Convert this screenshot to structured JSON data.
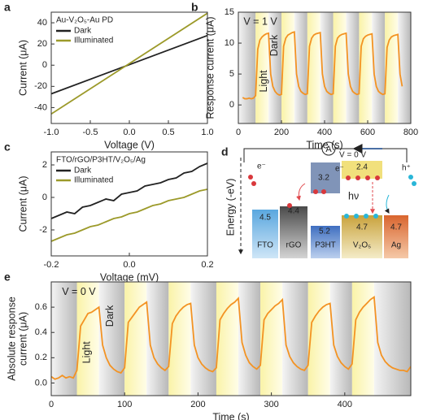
{
  "chart_data": [
    {
      "type": "line",
      "panel_label": "a",
      "xlabel": "Voltage (V)",
      "ylabel": "Current (μA)",
      "legend_title": "Au-V₂O₅-Au PD",
      "legend": "upper left",
      "x": [
        -1,
        1
      ],
      "series": [
        {
          "name": "Dark",
          "color": "#222222",
          "values": [
            -27,
            28
          ]
        },
        {
          "name": "Illuminated",
          "color": "#9c9a2a",
          "values": [
            -46,
            49
          ]
        }
      ],
      "xlim": [
        -1,
        1
      ],
      "ylim": [
        -55,
        50
      ],
      "xticks": [
        {
          "value": -1,
          "label": "-1.0"
        },
        -0.5,
        {
          "value": 0,
          "label": "0.0"
        },
        0.5,
        {
          "value": 1,
          "label": "1.0"
        }
      ],
      "yticks": [
        -40,
        -20,
        0,
        20,
        40
      ]
    },
    {
      "type": "line",
      "panel_label": "b",
      "xlabel": "Time (s)",
      "ylabel": "Response current (μA)",
      "annotations": [
        "V = 1 V",
        "Light",
        "Dark"
      ],
      "bands": [
        [
          80,
          140
        ],
        [
          200,
          260
        ],
        [
          320,
          380
        ],
        [
          440,
          500
        ],
        [
          560,
          620
        ],
        [
          680,
          740
        ]
      ],
      "x": [
        20,
        30,
        40,
        50,
        60,
        70,
        80,
        90,
        100,
        110,
        120,
        130,
        140,
        150,
        160,
        170,
        180,
        190,
        200,
        210,
        220,
        230,
        240,
        250,
        260,
        270,
        280,
        290,
        300,
        310,
        320,
        330,
        340,
        350,
        360,
        370,
        380,
        390,
        400,
        410,
        420,
        430,
        440,
        450,
        460,
        470,
        480,
        490,
        500,
        510,
        520,
        530,
        540,
        550,
        560,
        570,
        580,
        590,
        600,
        610,
        620,
        630,
        640,
        650,
        660,
        670,
        680,
        690,
        700,
        710,
        720,
        730,
        740,
        750,
        760
      ],
      "series": [
        {
          "name": "Response current",
          "color": "#f39323",
          "values": [
            1.2,
            1.0,
            1.0,
            1.1,
            1.0,
            1.1,
            1.5,
            9,
            10.5,
            11,
            11.3,
            11.5,
            11.6,
            5,
            3,
            2.2,
            1.8,
            1.6,
            1.7,
            9.5,
            10.8,
            11.3,
            11.5,
            11.7,
            11.8,
            5,
            3,
            2.2,
            1.9,
            1.7,
            1.8,
            9.5,
            10.8,
            11.3,
            11.5,
            11.6,
            11.7,
            5,
            3,
            2.2,
            1.9,
            1.7,
            1.8,
            9.5,
            10.8,
            11.2,
            11.4,
            11.5,
            11.6,
            5,
            3,
            2.2,
            1.9,
            1.7,
            1.8,
            9.5,
            10.7,
            11.1,
            11.3,
            11.4,
            11.5,
            5,
            3,
            2.2,
            1.9,
            1.7,
            1.8,
            9.3,
            10.5,
            11,
            11.2,
            11.3,
            11.4,
            5,
            3
          ]
        }
      ],
      "xlim": [
        0,
        800
      ],
      "ylim": [
        -3,
        15
      ],
      "xticks": [
        0,
        200,
        400,
        600,
        800
      ],
      "yticks": [
        0,
        5,
        10,
        15
      ]
    },
    {
      "type": "line",
      "panel_label": "c",
      "xlabel": "Voltage (mV)",
      "ylabel": "Current (μA)",
      "legend_title": "FTO/rGO/P3HT/V₂O₅/Ag",
      "legend": "upper left",
      "x": [
        -0.2,
        -0.18,
        -0.16,
        -0.14,
        -0.12,
        -0.1,
        -0.08,
        -0.06,
        -0.04,
        -0.02,
        0,
        0.02,
        0.04,
        0.06,
        0.08,
        0.1,
        0.12,
        0.14,
        0.16,
        0.18,
        0.2
      ],
      "series": [
        {
          "name": "Dark",
          "color": "#222222",
          "values": [
            -1.3,
            -1.1,
            -0.9,
            -1.0,
            -0.6,
            -0.5,
            -0.3,
            -0.1,
            -0.2,
            0.2,
            0.3,
            0.4,
            0.7,
            0.8,
            0.9,
            1.1,
            1.2,
            1.5,
            1.6,
            1.9,
            2.1
          ]
        },
        {
          "name": "Illuminated",
          "color": "#9c9a2a",
          "values": [
            -2.7,
            -2.5,
            -2.3,
            -2.2,
            -2.0,
            -1.8,
            -1.7,
            -1.5,
            -1.3,
            -1.2,
            -1.0,
            -0.9,
            -0.7,
            -0.5,
            -0.4,
            -0.2,
            -0.1,
            0.0,
            0.2,
            0.4,
            0.5
          ]
        }
      ],
      "xlim": [
        -0.2,
        0.2
      ],
      "ylim": [
        -3.6,
        2.8
      ],
      "xticks": [
        -0.2,
        {
          "value": 0,
          "label": "0.0"
        },
        0.2
      ],
      "yticks": [
        -2,
        0,
        2
      ]
    },
    {
      "type": "line",
      "panel_label": "e",
      "xlabel": "Time (s)",
      "ylabel": [
        "Absolute response",
        "current (μA)"
      ],
      "annotations": [
        "V = 0 V",
        "Light",
        "Dark"
      ],
      "bands": [
        [
          35,
          65
        ],
        [
          100,
          130
        ],
        [
          160,
          190
        ],
        [
          225,
          255
        ],
        [
          285,
          315
        ],
        [
          350,
          380
        ],
        [
          410,
          440
        ]
      ],
      "x": [
        0,
        5,
        10,
        15,
        20,
        25,
        30,
        35,
        40,
        45,
        50,
        55,
        60,
        65,
        70,
        75,
        80,
        85,
        90,
        95,
        100,
        105,
        110,
        115,
        120,
        125,
        130,
        135,
        140,
        145,
        150,
        155,
        160,
        165,
        170,
        175,
        180,
        185,
        190,
        195,
        200,
        205,
        210,
        215,
        220,
        225,
        230,
        235,
        240,
        245,
        250,
        255,
        260,
        265,
        270,
        275,
        280,
        285,
        290,
        295,
        300,
        305,
        310,
        315,
        320,
        325,
        330,
        335,
        340,
        345,
        350,
        355,
        360,
        365,
        370,
        375,
        380,
        385,
        390,
        395,
        400,
        405,
        410,
        415,
        420,
        425,
        430,
        435,
        440,
        445,
        450,
        455,
        460,
        465,
        470,
        475,
        480,
        485,
        490
      ],
      "series": [
        {
          "name": "Absolute response current",
          "color": "#f39323",
          "values": [
            0.05,
            0.03,
            0.04,
            0.06,
            0.04,
            0.05,
            0.04,
            0.1,
            0.45,
            0.5,
            0.55,
            0.56,
            0.58,
            0.6,
            0.3,
            0.2,
            0.14,
            0.11,
            0.09,
            0.08,
            0.12,
            0.48,
            0.52,
            0.56,
            0.6,
            0.62,
            0.64,
            0.3,
            0.2,
            0.15,
            0.12,
            0.1,
            0.13,
            0.47,
            0.53,
            0.57,
            0.6,
            0.62,
            0.63,
            0.3,
            0.2,
            0.15,
            0.12,
            0.1,
            0.09,
            0.12,
            0.5,
            0.55,
            0.59,
            0.62,
            0.64,
            0.67,
            0.32,
            0.22,
            0.16,
            0.13,
            0.11,
            0.14,
            0.5,
            0.55,
            0.58,
            0.61,
            0.63,
            0.66,
            0.3,
            0.21,
            0.16,
            0.13,
            0.11,
            0.1,
            0.14,
            0.48,
            0.53,
            0.57,
            0.6,
            0.62,
            0.63,
            0.3,
            0.21,
            0.16,
            0.13,
            0.11,
            0.15,
            0.5,
            0.56,
            0.6,
            0.63,
            0.66,
            0.68,
            0.32,
            0.22,
            0.17,
            0.14,
            0.12,
            0.11,
            0.1,
            0.1,
            0.09,
            0.13
          ]
        }
      ],
      "xlim": [
        0,
        490
      ],
      "ylim": [
        -0.1,
        0.8
      ],
      "xticks": [
        0,
        100,
        200,
        300,
        400
      ],
      "yticks": [
        {
          "value": 0,
          "label": "0.0"
        },
        0.2,
        0.4,
        0.6
      ]
    }
  ],
  "diagram": {
    "panel_label": "d",
    "axis_label": "Energy (-eV)",
    "bias": "V = 0 V",
    "meter": "A",
    "electron_left": "e⁻",
    "electron_top": "e⁻",
    "hole": "h⁺",
    "photon": "hν",
    "layers": [
      {
        "name": "FTO",
        "levels": [
          "4.5"
        ]
      },
      {
        "name": "rGO",
        "levels": [
          "4.4"
        ]
      },
      {
        "name": "P3HT",
        "levels": [
          "3.2",
          "5.2"
        ]
      },
      {
        "name": "V₂O₅",
        "levels": [
          "2.4",
          "4.7"
        ]
      },
      {
        "name": "Ag",
        "levels": [
          "4.7"
        ]
      }
    ]
  }
}
